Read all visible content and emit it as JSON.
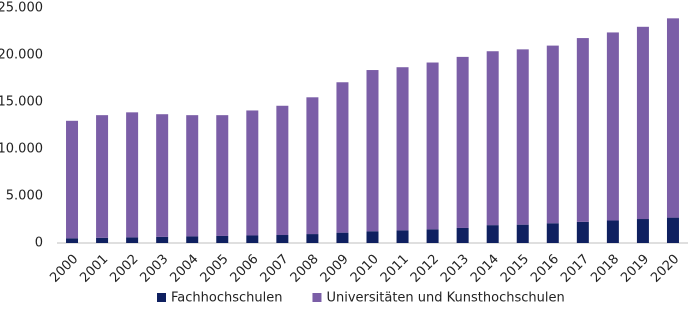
{
  "chart_data": {
    "type": "stacked-bar",
    "categories": [
      "2000",
      "2001",
      "2002",
      "2003",
      "2004",
      "2005",
      "2006",
      "2007",
      "2008",
      "2009",
      "2010",
      "2011",
      "2012",
      "2013",
      "2014",
      "2015",
      "2016",
      "2017",
      "2018",
      "2019",
      "2020"
    ],
    "series": [
      {
        "name": "Fachhochschulen",
        "color": "#0f2060",
        "values": [
          500,
          550,
          600,
          650,
          700,
          750,
          800,
          850,
          950,
          1100,
          1250,
          1350,
          1450,
          1600,
          1900,
          1950,
          2100,
          2250,
          2400,
          2550,
          2700
        ]
      },
      {
        "name": "Universitäten und Kunsthochschulen",
        "color": "#7b5ea7",
        "values": [
          12500,
          13050,
          13300,
          13050,
          12900,
          12850,
          13300,
          13750,
          14550,
          16000,
          17150,
          17350,
          17750,
          18200,
          18500,
          18650,
          18900,
          19550,
          20000,
          20450,
          21200
        ]
      }
    ],
    "ylim": [
      0,
      25000
    ],
    "yticks": [
      0,
      {
        "value": 5000,
        "label": "5.000"
      },
      {
        "value": 10000,
        "label": "10.000"
      },
      {
        "value": 15000,
        "label": "15.000"
      },
      {
        "value": 20000,
        "label": "20.000"
      },
      {
        "value": 25000,
        "label": "25.000"
      }
    ],
    "legend": "bottom"
  }
}
